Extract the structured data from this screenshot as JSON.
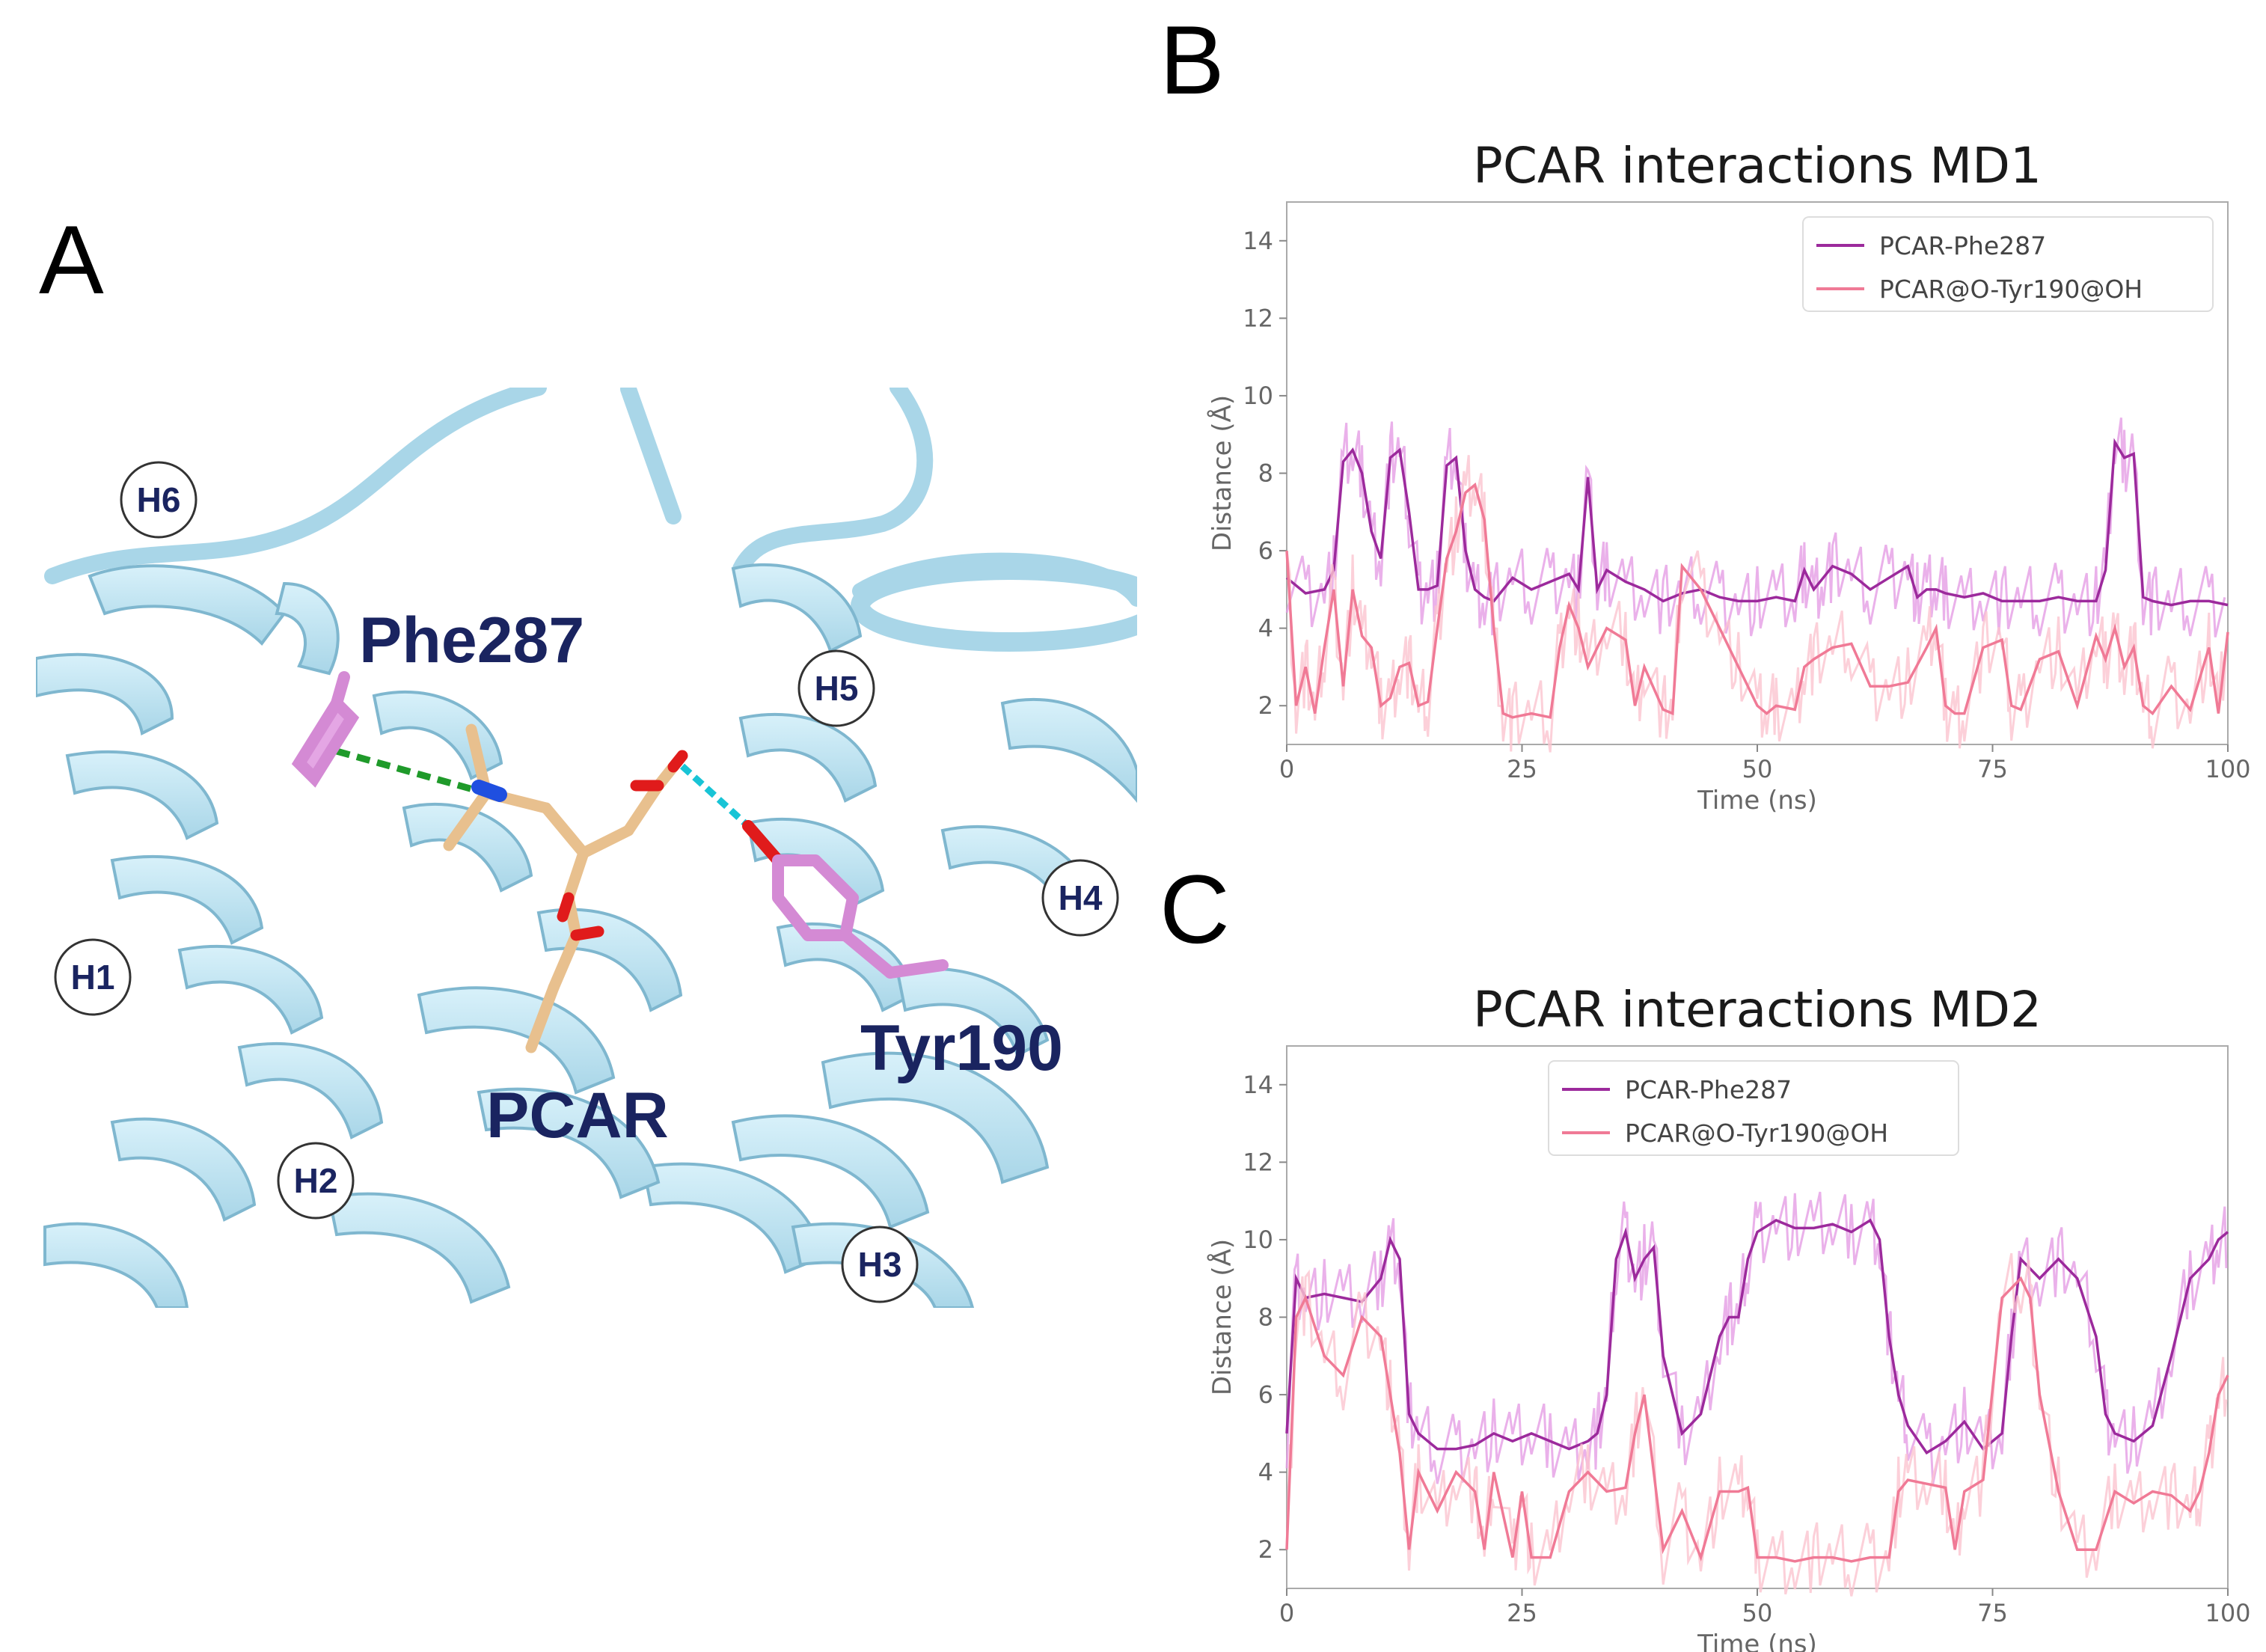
{
  "panels": {
    "a": {
      "letter": "A",
      "labels": {
        "phe": "Phe287",
        "pcar": "PCAR",
        "tyr": "Tyr190",
        "helices": [
          "H1",
          "H2",
          "H3",
          "H4",
          "H5",
          "H6"
        ]
      },
      "colors": {
        "ribbon": "#bfe6f4",
        "ribbon_edge": "#8fc4da",
        "ligand": "#e8c08e",
        "oxygen": "#e01b1b",
        "nitrogen": "#1f4fe0",
        "residue": "#e4a6e4",
        "hbond_phe": "#1f9a2a",
        "hbond_tyr": "#18c4d6"
      }
    },
    "b": {
      "letter": "B"
    },
    "c": {
      "letter": "C"
    }
  },
  "chart_data": [
    {
      "type": "line",
      "title": "PCAR interactions MD1",
      "xlabel": "Time (ns)",
      "ylabel": "Distance (Å)",
      "xlim": [
        0,
        100
      ],
      "ylim": [
        1,
        15
      ],
      "xticks": [
        0,
        25,
        50,
        75,
        100
      ],
      "yticks": [
        2,
        4,
        6,
        8,
        10,
        12,
        14
      ],
      "legend_position": "top-right",
      "series": [
        {
          "name": "PCAR-Phe287",
          "color": "#9c2a9c",
          "raw_color": "#e59ee5",
          "x": [
            0,
            2,
            4,
            5,
            6,
            7,
            8,
            9,
            10,
            11,
            12,
            13,
            14,
            15,
            16,
            17,
            18,
            19,
            20,
            21,
            22,
            24,
            26,
            28,
            30,
            31,
            32,
            33,
            34,
            36,
            38,
            40,
            42,
            44,
            46,
            48,
            50,
            52,
            54,
            55,
            56,
            57,
            58,
            60,
            62,
            64,
            66,
            67,
            68,
            69,
            70,
            72,
            74,
            76,
            78,
            80,
            82,
            84,
            86,
            87,
            88,
            89,
            90,
            91,
            92,
            94,
            96,
            98,
            100
          ],
          "values": [
            5.3,
            4.9,
            5.0,
            5.5,
            8.3,
            8.6,
            8.0,
            6.5,
            5.8,
            8.4,
            8.6,
            7.0,
            5.0,
            5.0,
            5.1,
            8.2,
            8.4,
            6.0,
            5.0,
            4.8,
            4.7,
            5.3,
            5.0,
            5.2,
            5.4,
            5.0,
            7.9,
            5.0,
            5.5,
            5.2,
            5.0,
            4.7,
            4.9,
            5.0,
            4.8,
            4.7,
            4.7,
            4.8,
            4.7,
            5.5,
            5.0,
            5.3,
            5.6,
            5.4,
            5.0,
            5.3,
            5.6,
            4.8,
            5.0,
            5.0,
            4.9,
            4.8,
            4.9,
            4.7,
            4.7,
            4.7,
            4.8,
            4.7,
            4.7,
            5.5,
            8.8,
            8.4,
            8.5,
            4.8,
            4.7,
            4.6,
            4.7,
            4.7,
            4.6
          ]
        },
        {
          "name": "PCAR@O-Tyr190@OH",
          "color": "#f07a96",
          "raw_color": "#fbc4cf",
          "x": [
            0,
            1,
            2,
            3,
            4,
            5,
            6,
            7,
            8,
            9,
            10,
            11,
            12,
            13,
            14,
            15,
            16,
            17,
            18,
            19,
            20,
            21,
            22,
            23,
            24,
            26,
            28,
            29,
            30,
            31,
            32,
            34,
            36,
            37,
            38,
            40,
            41,
            42,
            44,
            46,
            48,
            50,
            51,
            52,
            54,
            55,
            56,
            58,
            60,
            62,
            64,
            66,
            68,
            69,
            70,
            71,
            72,
            74,
            76,
            77,
            78,
            80,
            82,
            84,
            86,
            87,
            88,
            89,
            90,
            91,
            92,
            94,
            96,
            98,
            99,
            100
          ],
          "values": [
            6.0,
            2.0,
            3.0,
            1.8,
            3.5,
            5.0,
            2.5,
            5.0,
            3.8,
            3.5,
            2.0,
            2.2,
            3.0,
            3.1,
            2.0,
            2.1,
            4.0,
            5.8,
            6.5,
            7.5,
            7.7,
            6.8,
            4.0,
            1.8,
            1.7,
            1.8,
            1.7,
            3.5,
            4.6,
            4.0,
            3.0,
            4.0,
            3.7,
            2.0,
            3.0,
            1.9,
            1.8,
            5.6,
            5.0,
            4.0,
            3.0,
            2.0,
            1.8,
            2.0,
            1.9,
            3.0,
            3.2,
            3.5,
            3.6,
            2.5,
            2.5,
            2.6,
            3.5,
            4.0,
            2.0,
            1.8,
            1.8,
            3.5,
            3.7,
            2.0,
            1.9,
            3.2,
            3.4,
            2.0,
            3.8,
            3.2,
            4.0,
            3.0,
            3.5,
            2.0,
            1.8,
            2.5,
            1.9,
            3.5,
            1.8,
            3.9
          ]
        }
      ]
    },
    {
      "type": "line",
      "title": "PCAR interactions MD2",
      "xlabel": "Time (ns)",
      "ylabel": "Distance (Å)",
      "xlim": [
        0,
        100
      ],
      "ylim": [
        1,
        15
      ],
      "xticks": [
        0,
        25,
        50,
        75,
        100
      ],
      "yticks": [
        2,
        4,
        6,
        8,
        10,
        12,
        14
      ],
      "legend_position": "top-left",
      "series": [
        {
          "name": "PCAR-Phe287",
          "color": "#9c2a9c",
          "raw_color": "#e59ee5",
          "x": [
            0,
            1,
            2,
            4,
            6,
            8,
            10,
            11,
            12,
            13,
            14,
            16,
            18,
            20,
            22,
            24,
            26,
            28,
            30,
            32,
            33,
            34,
            35,
            36,
            37,
            38,
            39,
            40,
            42,
            44,
            46,
            47,
            48,
            49,
            50,
            52,
            54,
            56,
            58,
            60,
            62,
            63,
            64,
            65,
            66,
            68,
            70,
            72,
            74,
            76,
            77,
            78,
            80,
            82,
            84,
            86,
            87,
            88,
            90,
            92,
            94,
            96,
            98,
            99,
            100
          ],
          "values": [
            5.0,
            9.0,
            8.5,
            8.6,
            8.5,
            8.4,
            9.0,
            10.0,
            9.5,
            5.5,
            5.0,
            4.6,
            4.6,
            4.7,
            5.0,
            4.8,
            5.0,
            4.8,
            4.6,
            4.8,
            5.0,
            6.0,
            9.5,
            10.2,
            9.0,
            9.5,
            9.8,
            7.0,
            5.0,
            5.5,
            7.5,
            8.0,
            8.0,
            9.5,
            10.2,
            10.5,
            10.3,
            10.3,
            10.4,
            10.2,
            10.5,
            10.0,
            7.5,
            6.0,
            5.2,
            4.5,
            4.8,
            5.3,
            4.6,
            5.0,
            7.5,
            9.5,
            9.0,
            9.5,
            9.0,
            7.5,
            5.5,
            5.0,
            4.8,
            5.2,
            7.0,
            9.0,
            9.5,
            10.0,
            10.2
          ]
        },
        {
          "name": "PCAR@O-Tyr190@OH",
          "color": "#f07a96",
          "raw_color": "#fbc4cf",
          "x": [
            0,
            1,
            2,
            4,
            6,
            8,
            10,
            11,
            12,
            13,
            14,
            16,
            18,
            20,
            21,
            22,
            24,
            25,
            26,
            28,
            30,
            32,
            34,
            36,
            37,
            38,
            40,
            42,
            44,
            46,
            48,
            49,
            50,
            52,
            54,
            56,
            58,
            60,
            62,
            64,
            65,
            66,
            68,
            70,
            71,
            72,
            74,
            76,
            78,
            79,
            80,
            82,
            84,
            86,
            88,
            90,
            92,
            94,
            96,
            97,
            98,
            99,
            100
          ],
          "values": [
            2.0,
            8.0,
            8.5,
            7.0,
            6.5,
            8.0,
            7.5,
            6.0,
            4.5,
            2.0,
            4.0,
            3.0,
            4.0,
            3.5,
            2.0,
            4.0,
            1.8,
            3.5,
            1.8,
            1.8,
            3.5,
            4.0,
            3.5,
            3.6,
            5.0,
            6.0,
            2.0,
            3.0,
            1.8,
            3.5,
            3.5,
            3.6,
            1.8,
            1.8,
            1.7,
            1.8,
            1.8,
            1.7,
            1.8,
            1.8,
            3.5,
            3.8,
            3.7,
            3.6,
            2.0,
            3.5,
            3.8,
            8.5,
            9.0,
            8.5,
            6.0,
            3.5,
            2.0,
            2.0,
            3.5,
            3.2,
            3.5,
            3.4,
            3.0,
            3.5,
            4.5,
            6.0,
            6.5
          ]
        }
      ]
    }
  ]
}
